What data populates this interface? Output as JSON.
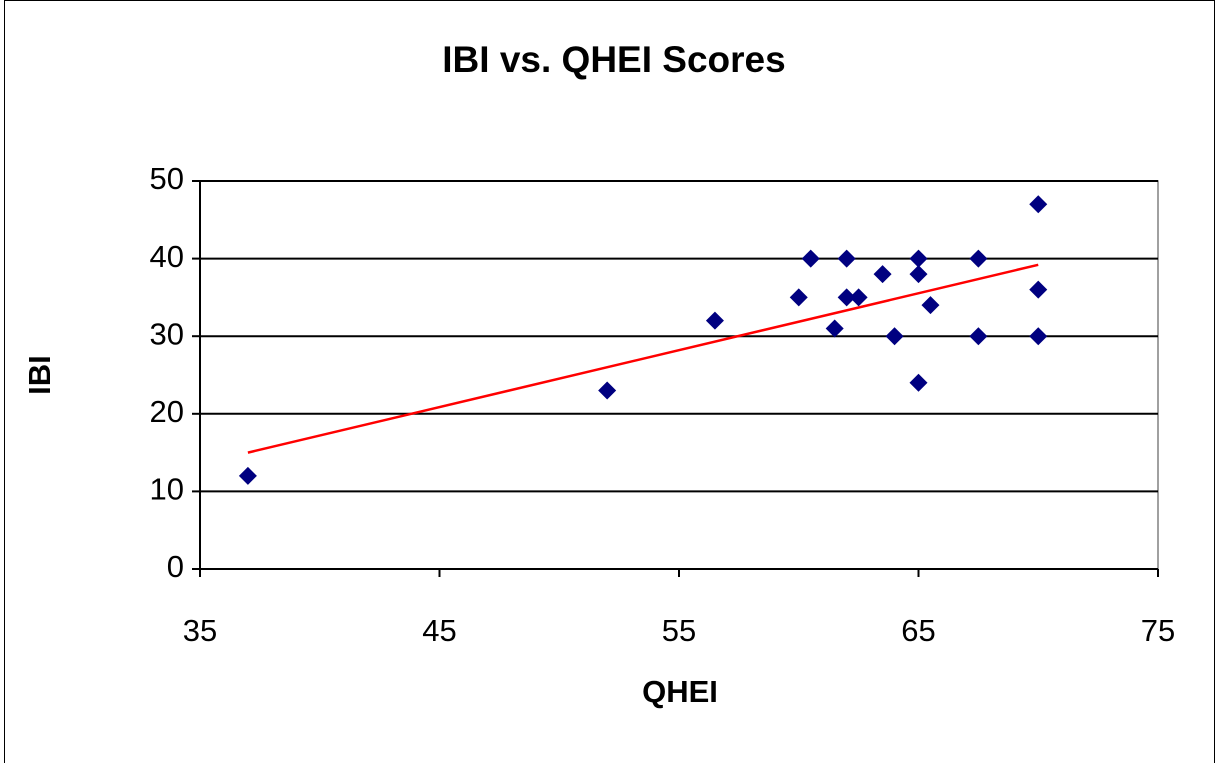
{
  "chart_data": {
    "type": "scatter",
    "title": "IBI vs. QHEI Scores",
    "x_label": "QHEI",
    "y_label": "IBI",
    "series": [
      {
        "name": "IBI",
        "color": "#000080",
        "x": [
          37,
          52,
          56.5,
          60,
          60.5,
          61.5,
          62,
          62,
          62.5,
          63.5,
          64,
          65,
          65,
          65,
          65.5,
          67.5,
          67.5,
          70,
          70,
          70
        ],
        "values": [
          12,
          23,
          32,
          35,
          40,
          31,
          40,
          35,
          35,
          38,
          30,
          40,
          38,
          24,
          34,
          40,
          30,
          47,
          36,
          30
        ]
      }
    ],
    "trendline": {
      "color": "#ff0000",
      "x": [
        37,
        70
      ],
      "values": [
        15,
        39.2
      ]
    },
    "xlim": [
      35,
      75
    ],
    "xticks": [
      35,
      45,
      55,
      65,
      75
    ],
    "ylim": [
      0,
      50
    ],
    "yticks": [
      0,
      10,
      20,
      30,
      40,
      50
    ],
    "grid": true
  }
}
